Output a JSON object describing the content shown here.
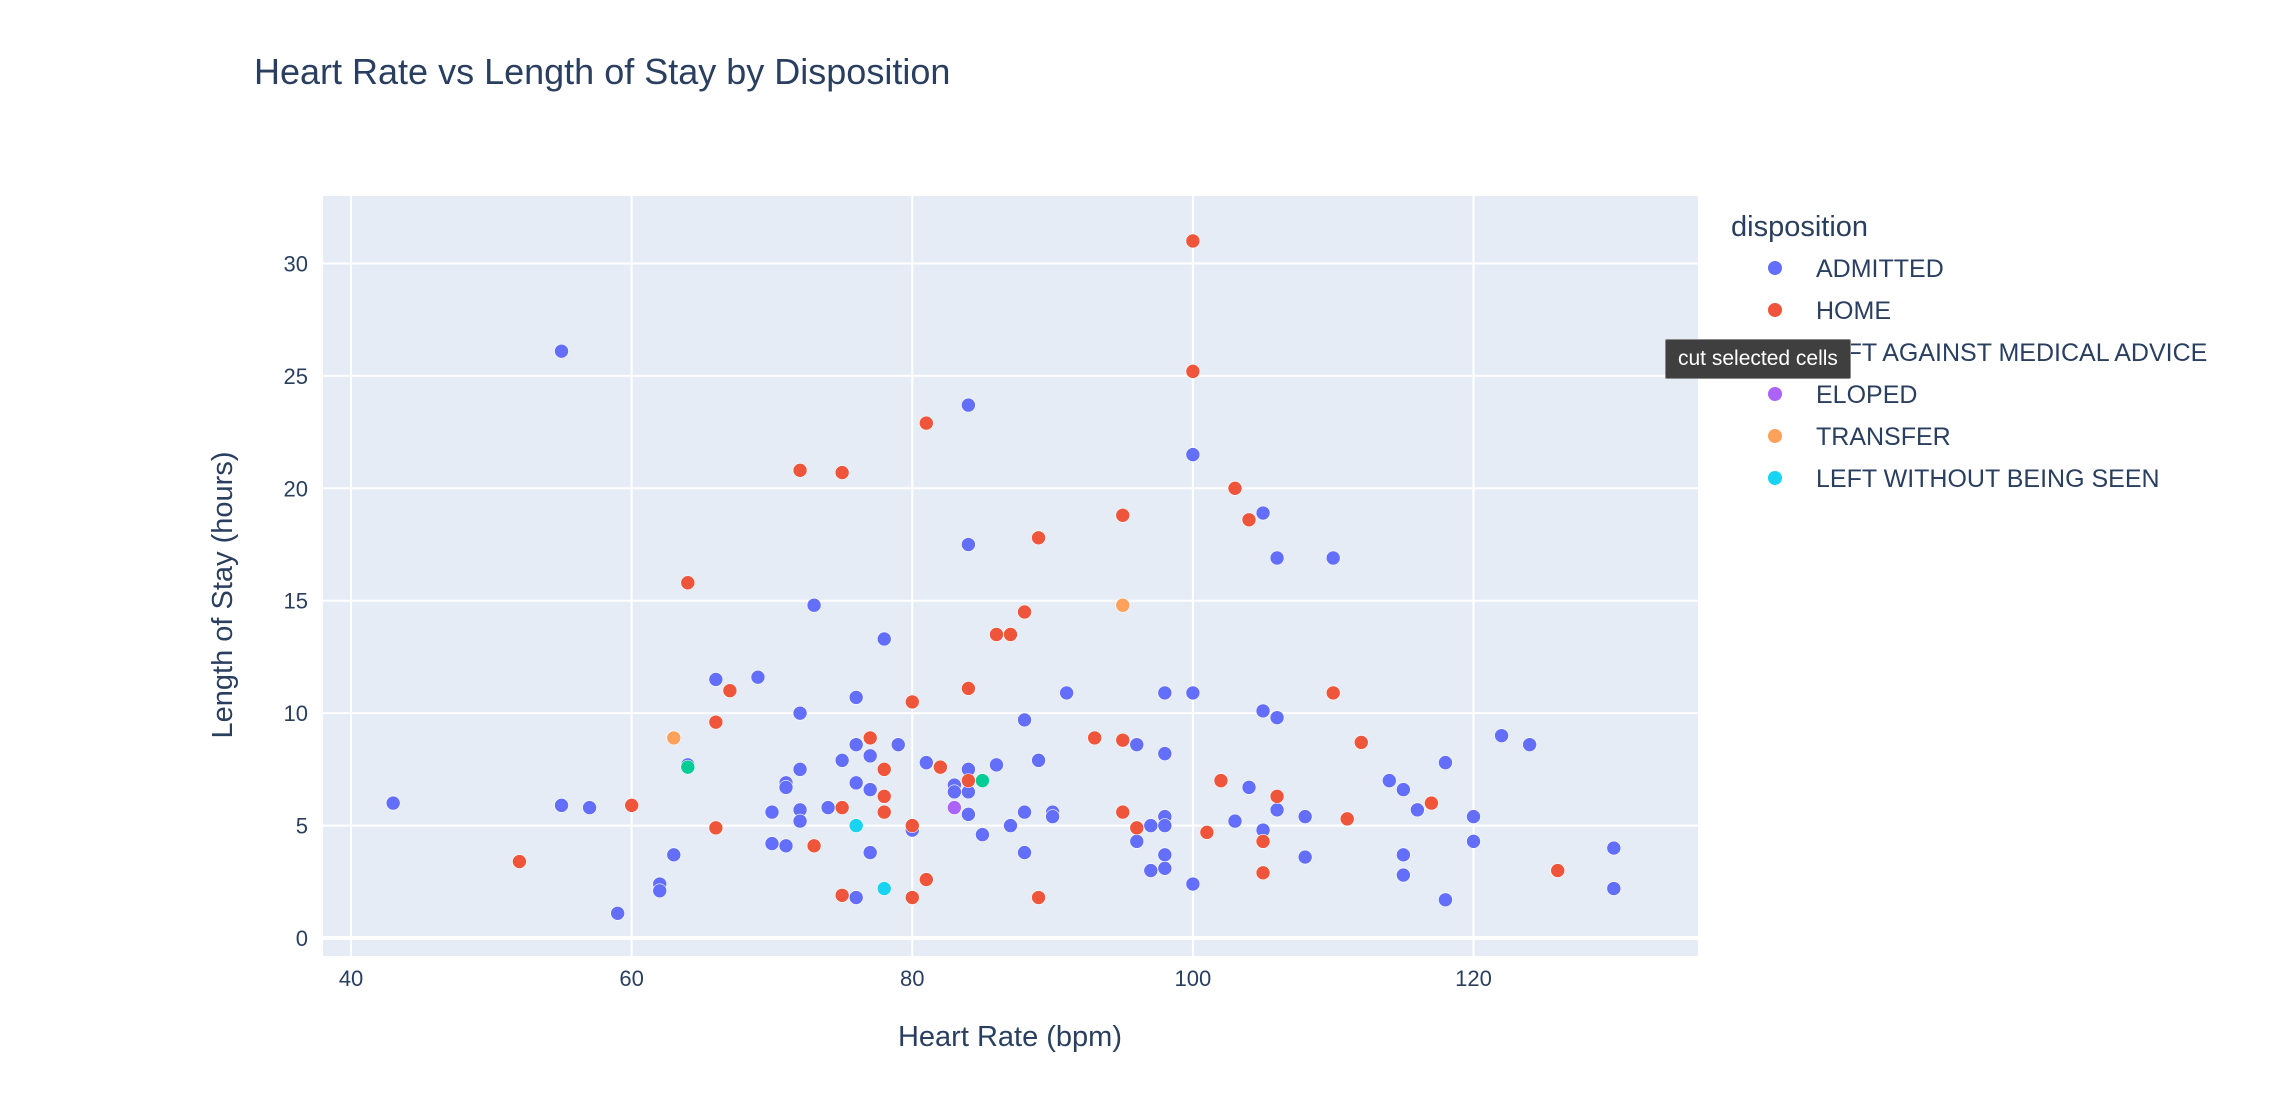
{
  "chart_data": {
    "type": "scatter",
    "title": "Heart Rate vs Length of Stay by Disposition",
    "xlabel": "Heart Rate (bpm)",
    "ylabel": "Length of Stay (hours)",
    "xlim": [
      38,
      136
    ],
    "ylim": [
      -0.8,
      33
    ],
    "xticks": [
      40,
      60,
      80,
      100,
      120
    ],
    "yticks": [
      0,
      5,
      10,
      15,
      20,
      25,
      30
    ],
    "grid": true,
    "legend_title": "disposition",
    "legend_position": "right",
    "series": [
      {
        "name": "ADMITTED",
        "color": "#636efa",
        "points": [
          [
            43,
            6.0
          ],
          [
            55,
            26.1
          ],
          [
            55,
            5.9
          ],
          [
            57,
            5.8
          ],
          [
            59,
            1.1
          ],
          [
            62,
            2.4
          ],
          [
            62,
            2.1
          ],
          [
            63,
            3.7
          ],
          [
            64,
            7.7
          ],
          [
            66,
            11.5
          ],
          [
            69,
            11.6
          ],
          [
            70,
            5.6
          ],
          [
            70,
            4.2
          ],
          [
            71,
            6.9
          ],
          [
            71,
            6.7
          ],
          [
            71,
            4.1
          ],
          [
            72,
            10.0
          ],
          [
            72,
            7.5
          ],
          [
            72,
            5.7
          ],
          [
            72,
            5.2
          ],
          [
            73,
            14.8
          ],
          [
            74,
            5.8
          ],
          [
            75,
            7.9
          ],
          [
            76,
            10.7
          ],
          [
            76,
            8.6
          ],
          [
            76,
            6.9
          ],
          [
            76,
            1.8
          ],
          [
            77,
            8.1
          ],
          [
            77,
            6.6
          ],
          [
            77,
            3.8
          ],
          [
            78,
            13.3
          ],
          [
            79,
            8.6
          ],
          [
            80,
            4.8
          ],
          [
            81,
            7.8
          ],
          [
            83,
            6.8
          ],
          [
            83,
            6.5
          ],
          [
            84,
            23.7
          ],
          [
            84,
            17.5
          ],
          [
            84,
            7.5
          ],
          [
            84,
            6.5
          ],
          [
            84,
            5.5
          ],
          [
            85,
            4.6
          ],
          [
            86,
            7.7
          ],
          [
            87,
            5.0
          ],
          [
            88,
            9.7
          ],
          [
            88,
            5.6
          ],
          [
            88,
            3.8
          ],
          [
            89,
            7.9
          ],
          [
            90,
            5.6
          ],
          [
            90,
            5.4
          ],
          [
            91,
            10.9
          ],
          [
            96,
            8.6
          ],
          [
            96,
            4.3
          ],
          [
            97,
            5.0
          ],
          [
            97,
            3.0
          ],
          [
            98,
            10.9
          ],
          [
            98,
            8.2
          ],
          [
            98,
            5.4
          ],
          [
            98,
            5.0
          ],
          [
            98,
            3.7
          ],
          [
            98,
            3.1
          ],
          [
            100,
            21.5
          ],
          [
            100,
            10.9
          ],
          [
            100,
            2.4
          ],
          [
            103,
            5.2
          ],
          [
            104,
            6.7
          ],
          [
            105,
            18.9
          ],
          [
            105,
            10.1
          ],
          [
            105,
            4.8
          ],
          [
            106,
            16.9
          ],
          [
            106,
            9.8
          ],
          [
            106,
            5.7
          ],
          [
            108,
            5.4
          ],
          [
            108,
            3.6
          ],
          [
            110,
            16.9
          ],
          [
            114,
            7.0
          ],
          [
            115,
            6.6
          ],
          [
            115,
            3.7
          ],
          [
            115,
            2.8
          ],
          [
            116,
            5.7
          ],
          [
            118,
            7.8
          ],
          [
            118,
            1.7
          ],
          [
            120,
            5.4
          ],
          [
            120,
            4.3
          ],
          [
            122,
            9.0
          ],
          [
            124,
            8.6
          ],
          [
            130,
            4.0
          ],
          [
            130,
            2.2
          ]
        ]
      },
      {
        "name": "HOME",
        "color": "#ef553b",
        "points": [
          [
            52,
            3.4
          ],
          [
            60,
            5.9
          ],
          [
            64,
            15.8
          ],
          [
            66,
            9.6
          ],
          [
            66,
            4.9
          ],
          [
            67,
            11.0
          ],
          [
            72,
            20.8
          ],
          [
            73,
            4.1
          ],
          [
            75,
            20.7
          ],
          [
            75,
            5.8
          ],
          [
            75,
            1.9
          ],
          [
            77,
            8.9
          ],
          [
            78,
            7.5
          ],
          [
            78,
            6.3
          ],
          [
            78,
            5.6
          ],
          [
            80,
            10.5
          ],
          [
            80,
            5.0
          ],
          [
            80,
            1.8
          ],
          [
            81,
            22.9
          ],
          [
            81,
            2.6
          ],
          [
            82,
            7.6
          ],
          [
            84,
            11.1
          ],
          [
            84,
            7.0
          ],
          [
            86,
            13.5
          ],
          [
            87,
            13.5
          ],
          [
            88,
            14.5
          ],
          [
            89,
            17.8
          ],
          [
            89,
            1.8
          ],
          [
            93,
            8.9
          ],
          [
            95,
            18.8
          ],
          [
            95,
            8.8
          ],
          [
            95,
            5.6
          ],
          [
            96,
            4.9
          ],
          [
            100,
            31.0
          ],
          [
            100,
            25.2
          ],
          [
            101,
            4.7
          ],
          [
            102,
            7.0
          ],
          [
            103,
            20.0
          ],
          [
            104,
            18.6
          ],
          [
            105,
            4.3
          ],
          [
            105,
            2.9
          ],
          [
            106,
            6.3
          ],
          [
            110,
            10.9
          ],
          [
            111,
            5.3
          ],
          [
            112,
            8.7
          ],
          [
            117,
            6.0
          ],
          [
            126,
            3.0
          ]
        ]
      },
      {
        "name": "LEFT AGAINST MEDICAL ADVICE",
        "color": "#00cc96",
        "points": [
          [
            64,
            7.6
          ],
          [
            85,
            7.0
          ]
        ]
      },
      {
        "name": "ELOPED",
        "color": "#ab63fa",
        "points": [
          [
            83,
            5.8
          ]
        ]
      },
      {
        "name": "TRANSFER",
        "color": "#ffa15a",
        "points": [
          [
            63,
            8.9
          ],
          [
            95,
            14.8
          ]
        ]
      },
      {
        "name": "LEFT WITHOUT BEING SEEN",
        "color": "#19d3f3",
        "points": [
          [
            76,
            5.0
          ],
          [
            78,
            2.2
          ]
        ]
      }
    ]
  },
  "tooltip": {
    "text": "cut selected cells"
  }
}
